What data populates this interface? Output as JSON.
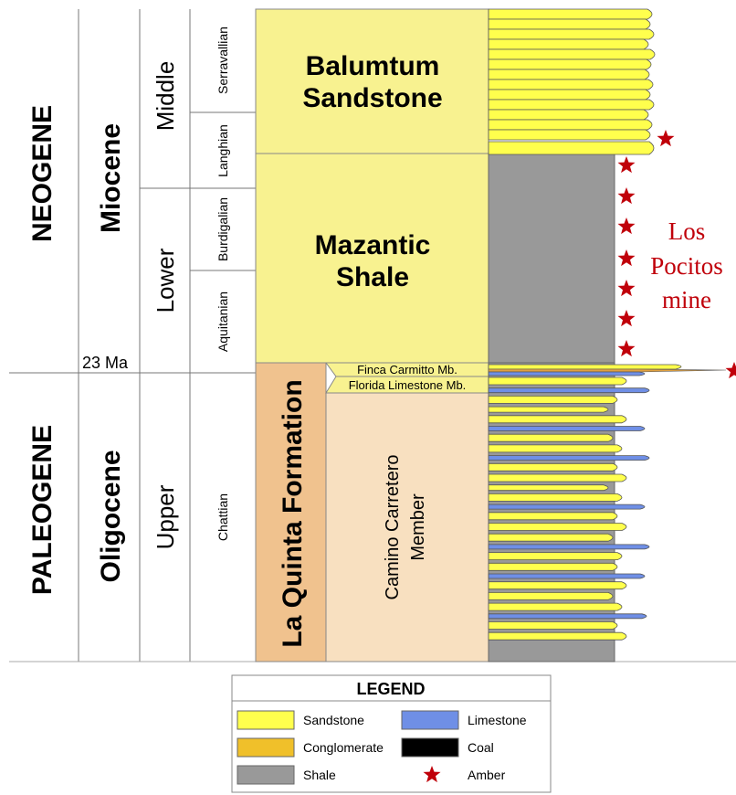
{
  "stratigraphy": {
    "systems": [
      "NEOGENE",
      "PALEOGENE"
    ],
    "series": [
      "Miocene",
      "Oligocene"
    ],
    "subseries": [
      "Middle",
      "Lower",
      "Upper"
    ],
    "stages": [
      "Serravallian",
      "Langhian",
      "Burdigalian",
      "Aquitanian",
      "Chattian"
    ],
    "boundary_age": "23 Ma"
  },
  "units": {
    "balumtum": "Balumtum Sandstone",
    "mazantic": "Mazantic Shale",
    "la_quinta": "La Quinta Formation",
    "finca": "Finca Carmitto Mb.",
    "florida": "Florida Limestone Mb.",
    "camino": "Camino Carretero Member"
  },
  "annotation": {
    "line1": "Los",
    "line2": "Pocitos",
    "line3": "mine"
  },
  "legend": {
    "title": "LEGEND",
    "items": [
      {
        "label": "Sandstone",
        "color": "#ffff4d"
      },
      {
        "label": "Limestone",
        "color": "#6f8fe6"
      },
      {
        "label": "Conglomerate",
        "color": "#f0c02a"
      },
      {
        "label": "Coal",
        "color": "#000000"
      },
      {
        "label": "Shale",
        "color": "#999999"
      },
      {
        "label": "Amber",
        "color": "#c0000a"
      }
    ]
  },
  "colors": {
    "formation_fill": "#f8f290",
    "la_quinta_fill": "#f0c28e",
    "camino_fill": "#f8e0c0",
    "shale": "#999999",
    "sandstone": "#ffff4d",
    "limestone": "#6f8fe6",
    "amber": "#c0000a"
  }
}
